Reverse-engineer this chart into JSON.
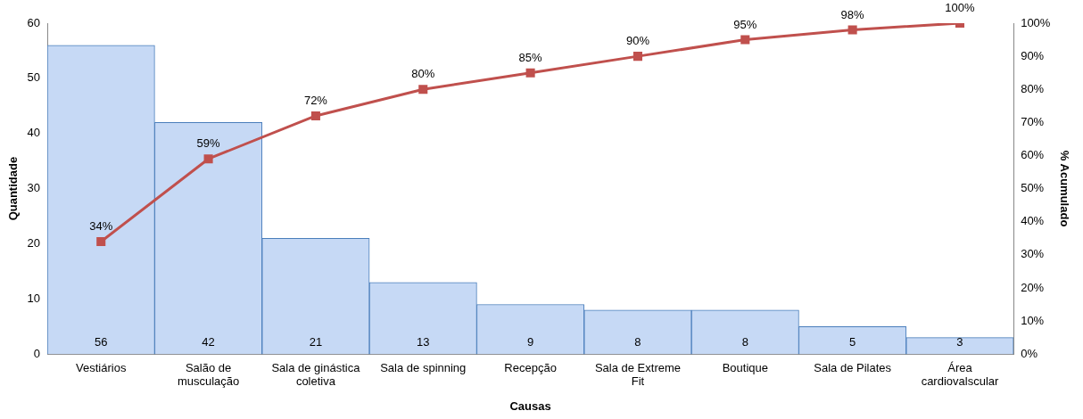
{
  "chart_data": {
    "type": "bar",
    "xlabel": "Causas",
    "ylabel": "Quantidade",
    "y2label": "% Acumulado",
    "categories": [
      "Vestiários",
      "Salão de musculação",
      "Sala de ginástica coletiva",
      "Sala de spinning",
      "Recepção",
      "Sala de Extreme Fit",
      "Boutique",
      "Sala de Pilates",
      "Área cardiovalscular"
    ],
    "series": [
      {
        "color": "#c6d9f5",
        "values": [
          56,
          42,
          21,
          13,
          9,
          8,
          8,
          5,
          3
        ],
        "value_labels": [
          "56",
          "42",
          "21",
          "13",
          "9",
          "8",
          "8",
          "5",
          "3"
        ]
      },
      {
        "type": "line",
        "axis": "y2",
        "color": "#c0504d",
        "values": [
          34,
          59,
          72,
          80,
          85,
          90,
          95,
          98,
          100
        ],
        "value_labels": [
          "34%",
          "59%",
          "72%",
          "80%",
          "85%",
          "90%",
          "95%",
          "98%",
          "100%"
        ]
      }
    ],
    "ylim": [
      0,
      60
    ],
    "yticks": [
      0,
      10,
      20,
      30,
      40,
      50,
      60
    ],
    "y2lim": [
      0,
      100
    ],
    "y2ticks": [
      {
        "value": 0,
        "label": "0%"
      },
      {
        "value": 10,
        "label": "10%"
      },
      {
        "value": 20,
        "label": "20%"
      },
      {
        "value": 30,
        "label": "30%"
      },
      {
        "value": 40,
        "label": "40%"
      },
      {
        "value": 50,
        "label": "50%"
      },
      {
        "value": 60,
        "label": "60%"
      },
      {
        "value": 70,
        "label": "70%"
      },
      {
        "value": 80,
        "label": "80%"
      },
      {
        "value": 90,
        "label": "90%"
      },
      {
        "value": 100,
        "label": "100%"
      }
    ],
    "grid": false,
    "legend": false,
    "marker": "square",
    "line_style": "solid"
  }
}
